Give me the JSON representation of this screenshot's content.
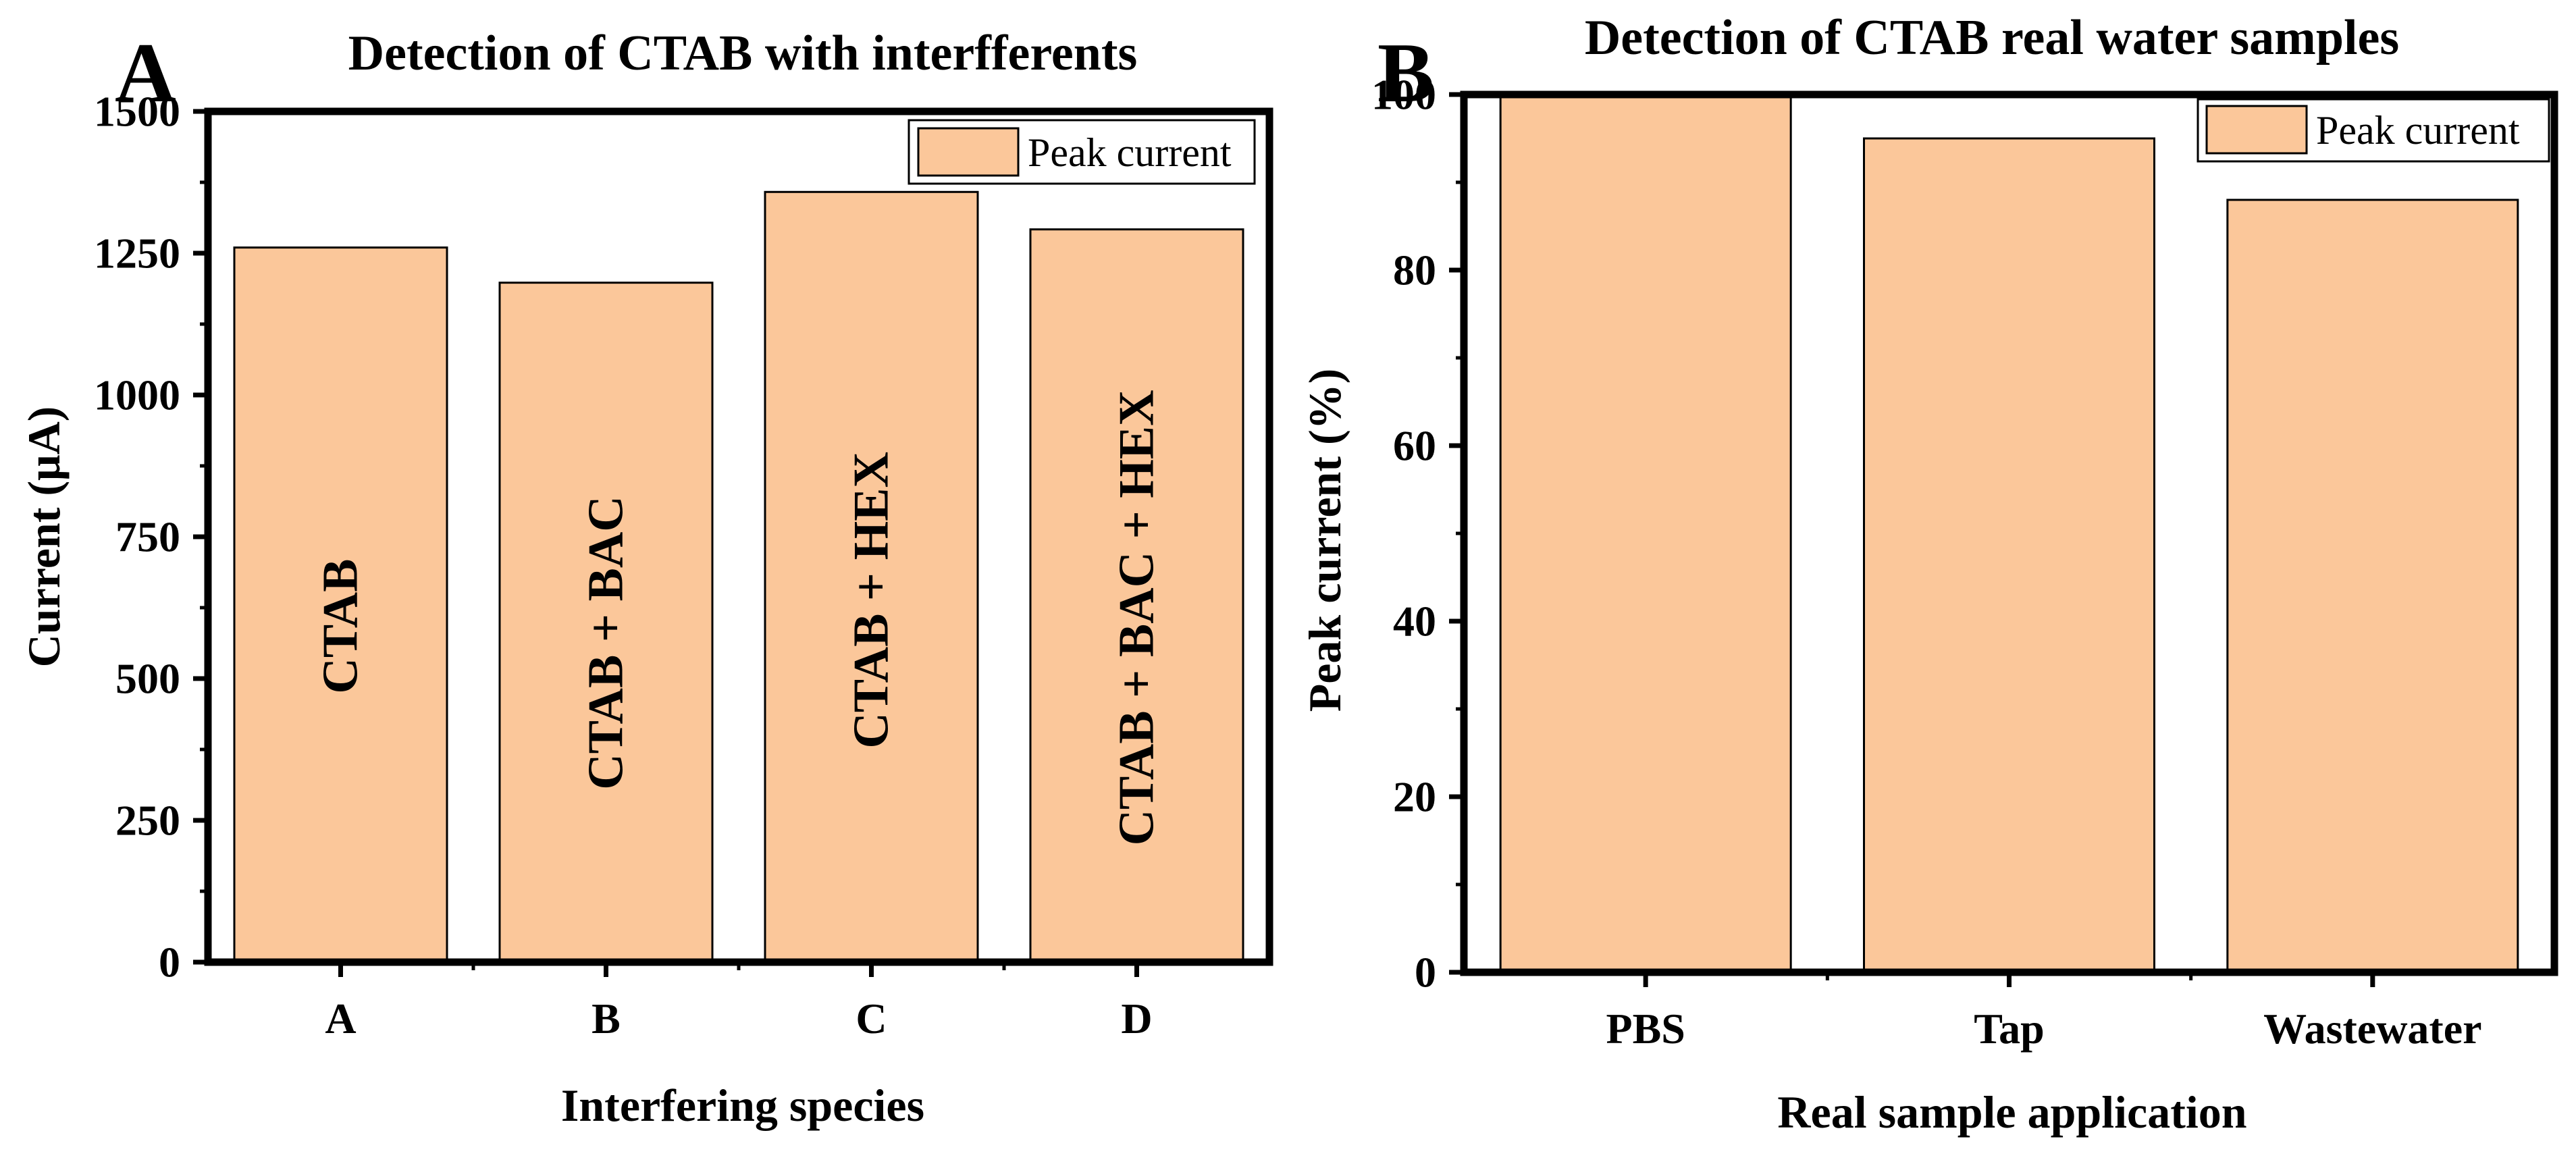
{
  "chart_data": [
    {
      "type": "bar",
      "panel_label": "A",
      "title": "Detection of CTAB with interfferents",
      "xlabel": "Interfering species",
      "ylabel": "Current (μA)",
      "categories": [
        "A",
        "B",
        "C",
        "D"
      ],
      "series": [
        {
          "name": "Peak current",
          "values": [
            1260,
            1198,
            1358,
            1292
          ]
        }
      ],
      "bar_labels": [
        "CTAB",
        "CTAB + BAC",
        "CTAB + HEX",
        "CTAB + BAC + HEX"
      ],
      "ylim": [
        0,
        1500
      ],
      "yticks": [
        0,
        250,
        500,
        750,
        1000,
        1250,
        1500
      ],
      "ytick_labels": [
        "0",
        "250",
        "500",
        "750",
        "1000",
        "1250",
        "1500"
      ],
      "bar_color": "#FBC79A",
      "grid": false,
      "legend_position": "top-right"
    },
    {
      "type": "bar",
      "panel_label": "B",
      "title": "Detection of CTAB real water samples",
      "xlabel": "Real sample application",
      "ylabel": "Peak current (%)",
      "categories": [
        "PBS",
        "Tap",
        "Wastewater"
      ],
      "series": [
        {
          "name": "Peak current",
          "values": [
            100,
            95,
            88
          ]
        }
      ],
      "ylim": [
        0,
        100
      ],
      "yticks": [
        0,
        20,
        40,
        60,
        80,
        100
      ],
      "ytick_labels": [
        "0",
        "20",
        "40",
        "60",
        "80",
        "100"
      ],
      "bar_color": "#FBC79A",
      "grid": false,
      "legend_position": "top-right"
    }
  ]
}
